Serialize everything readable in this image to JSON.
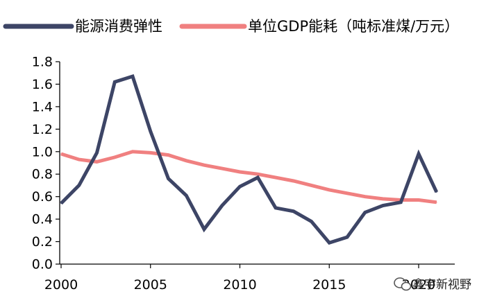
{
  "chart_data": {
    "type": "line",
    "title": "",
    "xlabel": "",
    "ylabel": "",
    "xlim": [
      2000,
      2021.5
    ],
    "ylim": [
      0.0,
      1.8
    ],
    "grid": false,
    "legend_position": "top",
    "x_ticks": [
      "2000",
      "2005",
      "2010",
      "2015",
      "2020"
    ],
    "y_ticks": [
      "0.0",
      "0.2",
      "0.4",
      "0.6",
      "0.8",
      "1.0",
      "1.2",
      "1.4",
      "1.6",
      "1.8"
    ],
    "x": [
      2000,
      2001,
      2002,
      2003,
      2004,
      2005,
      2006,
      2007,
      2008,
      2009,
      2010,
      2011,
      2012,
      2013,
      2014,
      2015,
      2016,
      2017,
      2018,
      2019,
      2020,
      2021
    ],
    "series": [
      {
        "name": "能源消费弹性",
        "color": "#3d4566",
        "values": [
          0.54,
          0.7,
          0.99,
          1.62,
          1.67,
          1.18,
          0.76,
          0.61,
          0.31,
          0.52,
          0.69,
          0.77,
          0.5,
          0.47,
          0.38,
          0.19,
          0.24,
          0.46,
          0.52,
          0.55,
          0.98,
          0.64
        ]
      },
      {
        "name": "单位GDP能耗（吨标准煤/万元）",
        "color": "#f08080",
        "values": [
          0.98,
          0.93,
          0.91,
          0.95,
          1.0,
          0.99,
          0.97,
          0.92,
          0.88,
          0.85,
          0.82,
          0.8,
          0.77,
          0.74,
          0.7,
          0.66,
          0.63,
          0.6,
          0.58,
          0.57,
          0.57,
          0.55
        ]
      }
    ]
  },
  "watermark": {
    "text": "鑫宇新视野",
    "icon": "wechat-icon"
  }
}
